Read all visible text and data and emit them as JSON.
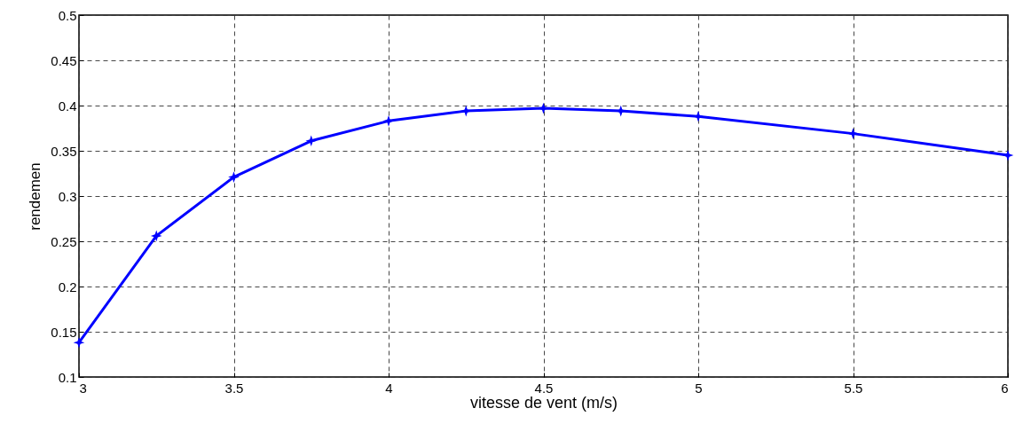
{
  "chart_data": {
    "type": "line",
    "xlabel": "vitesse de vent (m/s)",
    "ylabel": "rendemen",
    "x": [
      3,
      3.25,
      3.5,
      3.75,
      4,
      4.25,
      4.5,
      4.75,
      5,
      5.5,
      6
    ],
    "series": [
      {
        "color": "#0000ff",
        "values": [
          0.138,
          0.256,
          0.321,
          0.361,
          0.383,
          0.394,
          0.397,
          0.394,
          0.388,
          0.369,
          0.345
        ]
      }
    ],
    "xlim": [
      3,
      6
    ],
    "xticks": [
      3,
      3.5,
      4,
      4.5,
      5,
      5.5,
      6
    ],
    "ylim": [
      0.1,
      0.5
    ],
    "yticks": [
      0.1,
      0.15,
      0.2,
      0.25,
      0.3,
      0.35,
      0.4,
      0.45,
      0.5
    ],
    "grid": true,
    "marker": "star",
    "line_style": "solid"
  }
}
